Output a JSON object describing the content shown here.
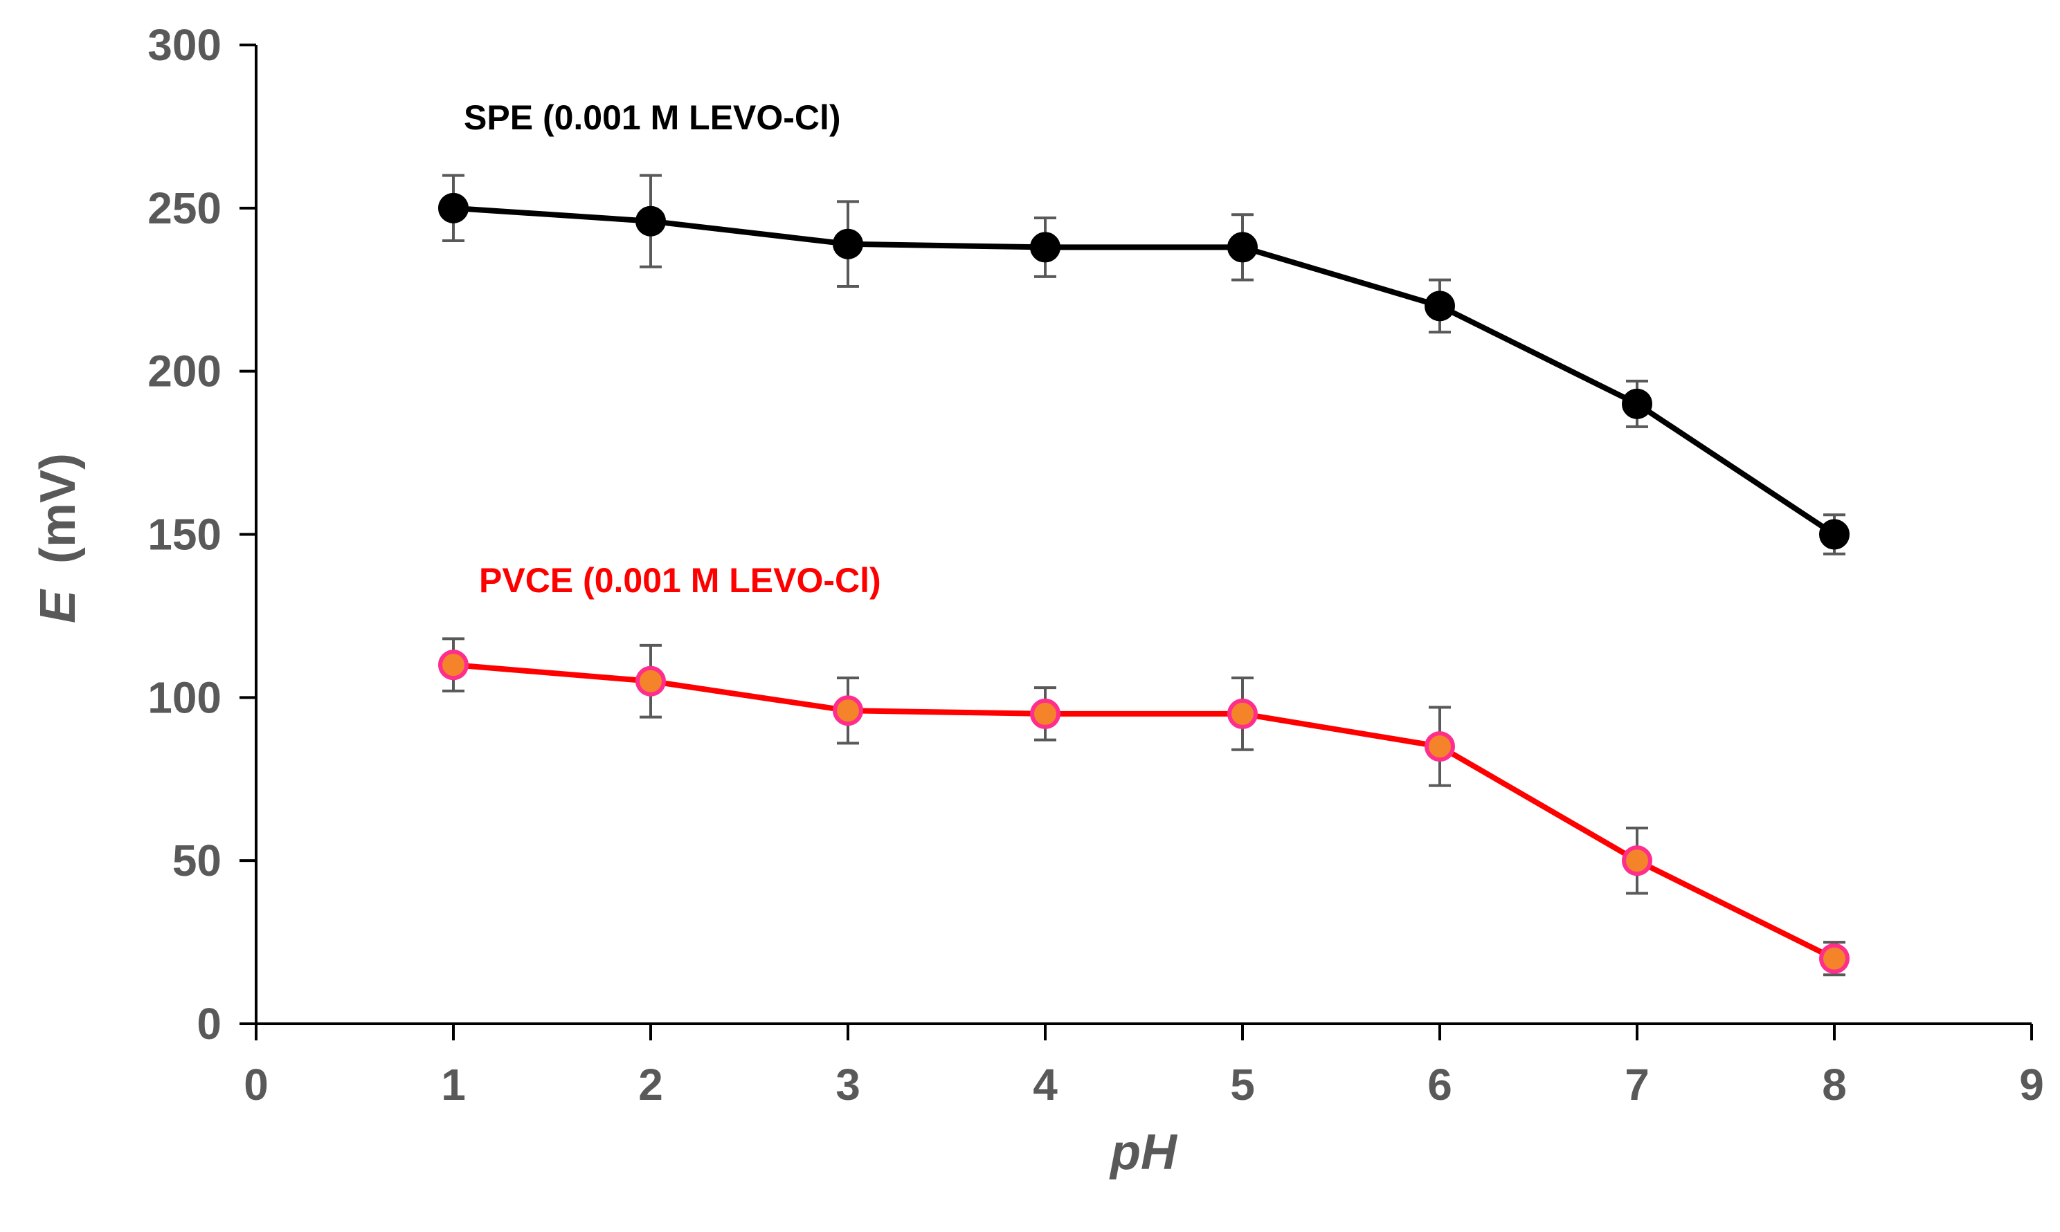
{
  "chart_data": {
    "type": "line",
    "title": "",
    "xlabel": "pH",
    "ylabel_italic": "E",
    "ylabel_unit": "(mV)",
    "xlim": [
      0,
      9
    ],
    "ylim": [
      0,
      300
    ],
    "x_ticks": [
      0,
      1,
      2,
      3,
      4,
      5,
      6,
      7,
      8,
      9
    ],
    "y_ticks": [
      0,
      50,
      100,
      150,
      200,
      250,
      300
    ],
    "grid": false,
    "x": [
      1,
      2,
      3,
      4,
      5,
      6,
      7,
      8
    ],
    "series": [
      {
        "name": "SPE (0.001 M LEVO-Cl)",
        "line_color": "#000000",
        "marker_fill": "#000000",
        "marker_edge": "#000000",
        "label_color": "#000000",
        "values": [
          250,
          246,
          239,
          238,
          238,
          220,
          190,
          150
        ],
        "errors": [
          10,
          14,
          13,
          9,
          10,
          8,
          7,
          6
        ]
      },
      {
        "name": "PVCE (0.001 M LEVO-Cl)",
        "line_color": "#ff0000",
        "marker_fill": "#f4832a",
        "marker_edge": "#ff2d8c",
        "label_color": "#ff0000",
        "values": [
          110,
          105,
          96,
          95,
          95,
          85,
          50,
          20
        ],
        "errors": [
          8,
          11,
          10,
          8,
          11,
          12,
          10,
          5
        ]
      }
    ]
  }
}
